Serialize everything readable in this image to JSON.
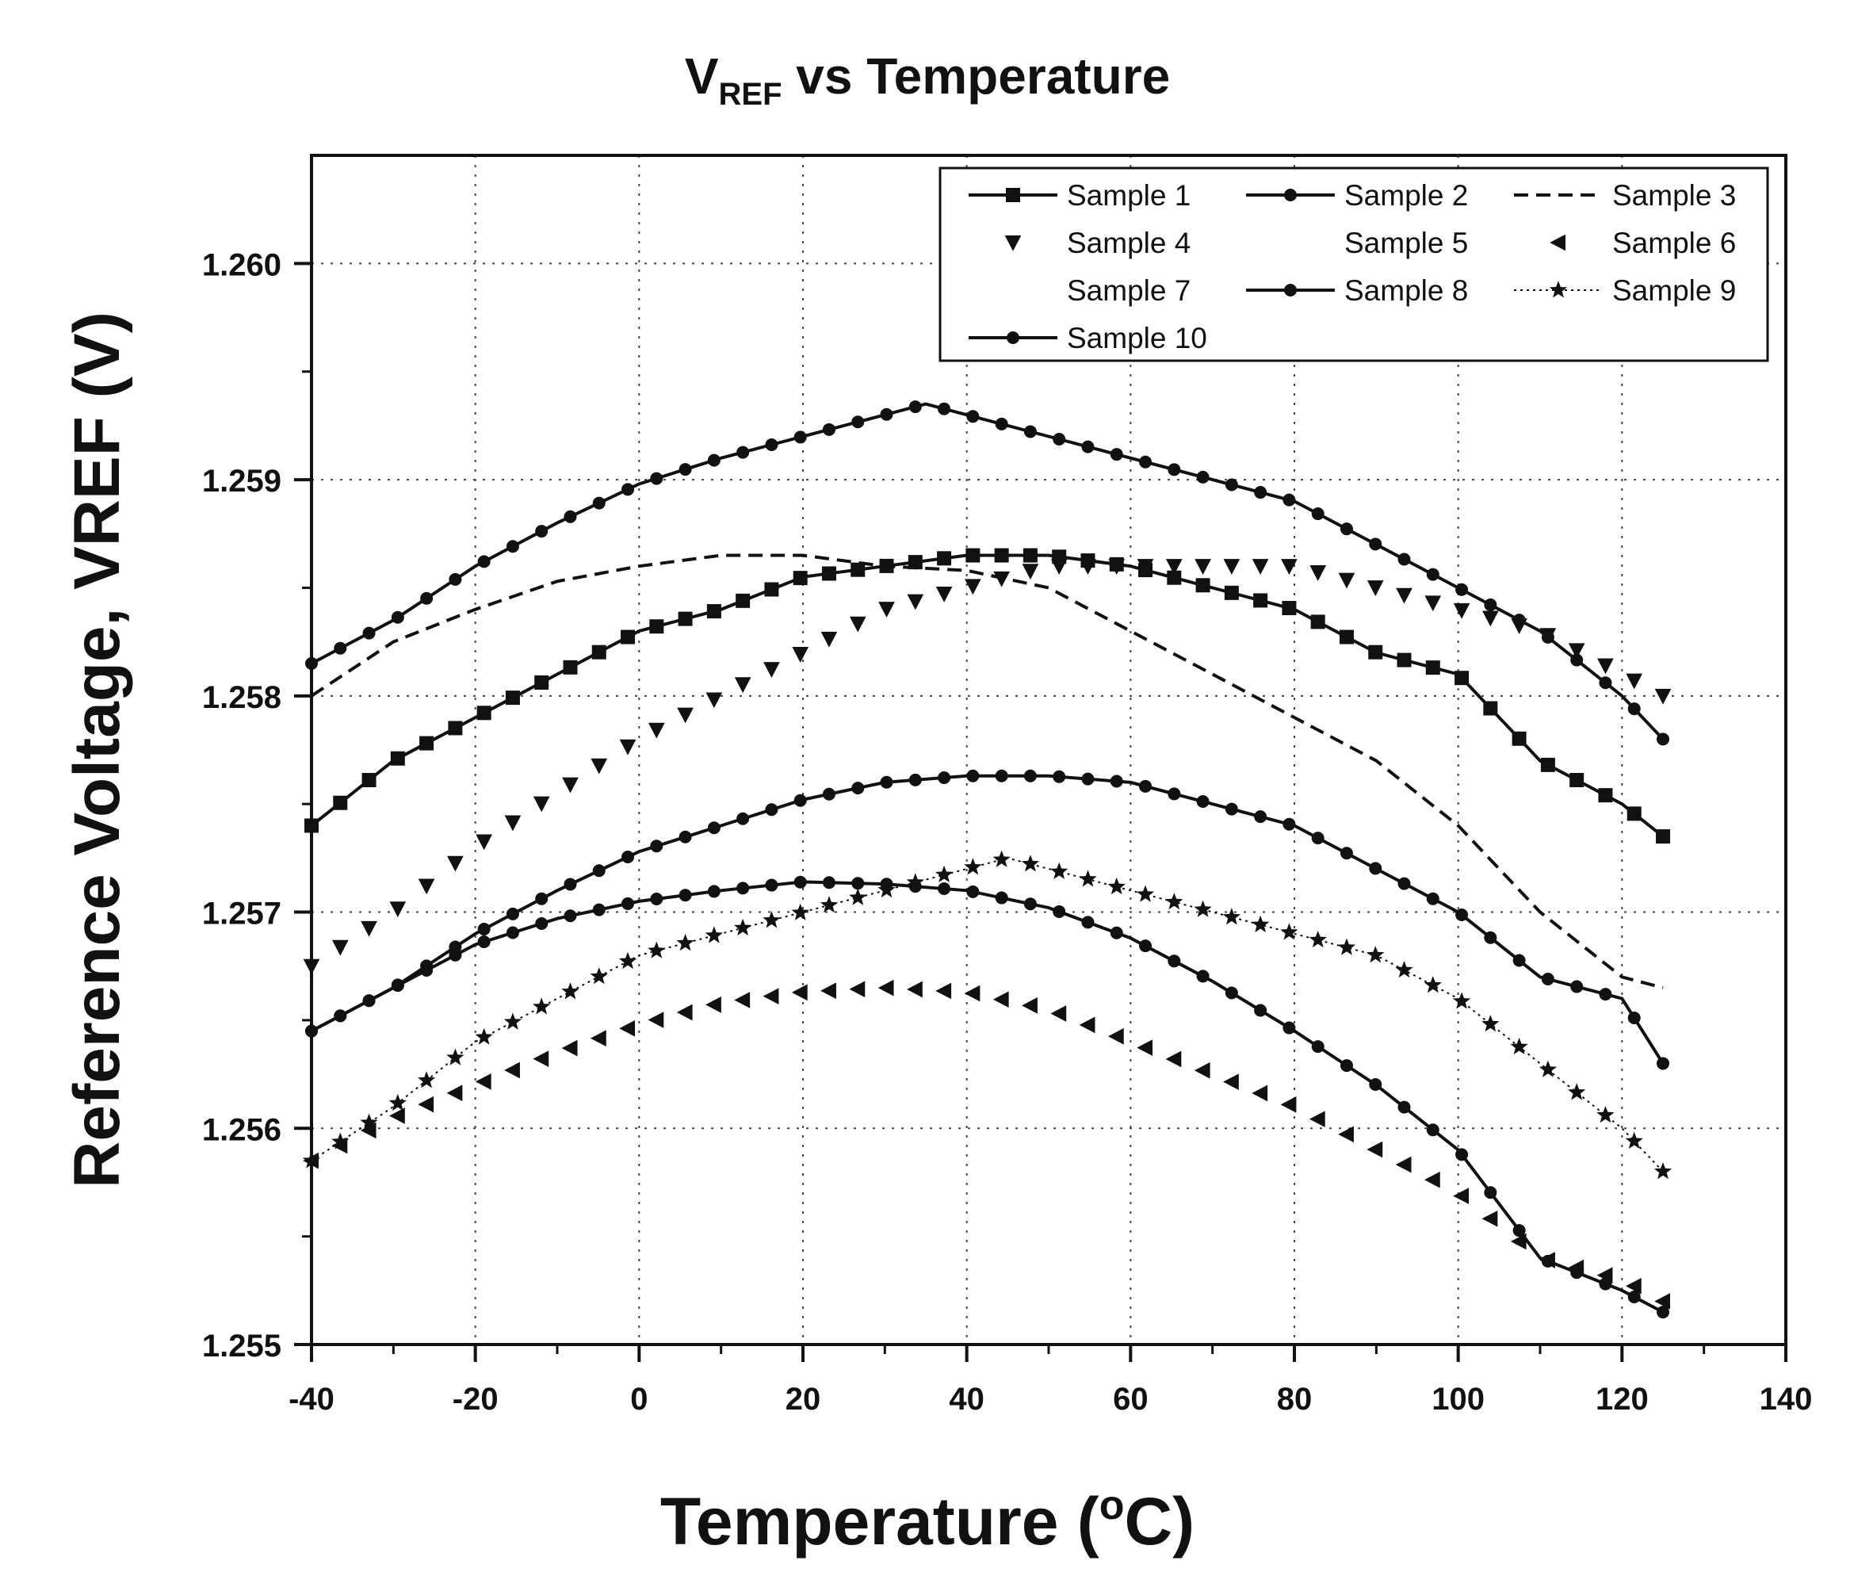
{
  "chart_data": {
    "type": "line",
    "title_main": "V",
    "title_sub": "REF",
    "title_rest": " vs Temperature",
    "xlabel_main": "Temperature (",
    "xlabel_sup": "o",
    "xlabel_end": "C)",
    "ylabel": "Reference Voltage, VREF (V)",
    "xlim": [
      -40,
      140
    ],
    "ylim": [
      1.255,
      1.2605
    ],
    "x_ticks": [
      -40,
      -20,
      0,
      20,
      40,
      60,
      80,
      100,
      120,
      140
    ],
    "x_tick_labels": [
      "-40",
      "-20",
      "0",
      "20",
      "40",
      "60",
      "80",
      "100",
      "120",
      "140"
    ],
    "y_ticks": [
      1.255,
      1.256,
      1.257,
      1.258,
      1.259,
      1.26
    ],
    "y_tick_labels": [
      "1.255",
      "1.256",
      "1.257",
      "1.258",
      "1.259",
      "1.260"
    ],
    "grid": true,
    "legend_position": "top-right",
    "series": [
      {
        "name": "Sample 1",
        "line": "solid",
        "marker": "square",
        "x": [
          -40,
          -30,
          -20,
          -10,
          0,
          10,
          20,
          30,
          40,
          50,
          60,
          70,
          80,
          90,
          100,
          110,
          120,
          125
        ],
        "y": [
          1.2574,
          1.2577,
          1.2579,
          1.2581,
          1.2583,
          1.2584,
          1.25855,
          1.2586,
          1.25865,
          1.25865,
          1.2586,
          1.2585,
          1.2584,
          1.2582,
          1.2581,
          1.2577,
          1.2575,
          1.25735
        ]
      },
      {
        "name": "Sample 2",
        "line": "solid",
        "marker": "circle",
        "x": [
          -40,
          -30,
          -20,
          -10,
          0,
          10,
          20,
          30,
          40,
          50,
          60,
          70,
          80,
          90,
          100,
          110,
          120,
          125
        ],
        "y": [
          1.25645,
          1.25665,
          1.25685,
          1.25697,
          1.25705,
          1.2571,
          1.25714,
          1.25713,
          1.2571,
          1.25702,
          1.25688,
          1.25668,
          1.25645,
          1.2562,
          1.2559,
          1.2554,
          1.25525,
          1.25515
        ]
      },
      {
        "name": "Sample 3",
        "line": "dashed",
        "marker": "none",
        "x": [
          -40,
          -30,
          -20,
          -10,
          0,
          10,
          20,
          30,
          40,
          50,
          60,
          70,
          80,
          90,
          100,
          110,
          120,
          125
        ],
        "y": [
          1.258,
          1.25825,
          1.2584,
          1.25853,
          1.2586,
          1.25865,
          1.25865,
          1.2586,
          1.25858,
          1.2585,
          1.2583,
          1.2581,
          1.2579,
          1.2577,
          1.2574,
          1.257,
          1.2567,
          1.25665
        ]
      },
      {
        "name": "Sample 4",
        "line": "none",
        "marker": "triangle-down",
        "x": [
          -40,
          -30,
          -20,
          -10,
          0,
          10,
          20,
          30,
          40,
          50,
          60,
          70,
          80,
          90,
          100,
          110,
          120,
          125
        ],
        "y": [
          1.25675,
          1.257,
          1.2573,
          1.25755,
          1.2578,
          1.258,
          1.2582,
          1.2584,
          1.2585,
          1.2586,
          1.2586,
          1.2586,
          1.2586,
          1.2585,
          1.2584,
          1.2583,
          1.2581,
          1.258
        ]
      },
      {
        "name": "Sample 5",
        "line": "none",
        "marker": "none",
        "x": [],
        "y": []
      },
      {
        "name": "Sample 6",
        "line": "none",
        "marker": "triangle-left",
        "x": [
          -40,
          -30,
          -20,
          -10,
          0,
          10,
          20,
          30,
          40,
          50,
          60,
          70,
          80,
          90,
          100,
          110,
          120,
          125
        ],
        "y": [
          1.25585,
          1.25605,
          1.2562,
          1.25635,
          1.25648,
          1.25658,
          1.25663,
          1.25665,
          1.25663,
          1.25655,
          1.2564,
          1.25625,
          1.2561,
          1.2559,
          1.2557,
          1.2554,
          1.2553,
          1.2552
        ]
      },
      {
        "name": "Sample 7",
        "line": "none",
        "marker": "none",
        "x": [],
        "y": []
      },
      {
        "name": "Sample 8",
        "line": "solid",
        "marker": "circle",
        "x": [
          -40,
          -30,
          -20,
          -10,
          0,
          10,
          20,
          30,
          40,
          50,
          60,
          70,
          80,
          90,
          100,
          110,
          120,
          125
        ],
        "y": [
          1.25645,
          1.25665,
          1.2569,
          1.2571,
          1.25728,
          1.2574,
          1.25752,
          1.2576,
          1.25763,
          1.25763,
          1.2576,
          1.2575,
          1.2574,
          1.2572,
          1.257,
          1.2567,
          1.2566,
          1.2563
        ]
      },
      {
        "name": "Sample 9",
        "line": "dotted",
        "marker": "star",
        "x": [
          -40,
          -30,
          -20,
          -10,
          0,
          10,
          20,
          30,
          40,
          45,
          50,
          60,
          70,
          80,
          90,
          100,
          110,
          120,
          125
        ],
        "y": [
          1.25585,
          1.2561,
          1.2564,
          1.2566,
          1.2568,
          1.2569,
          1.257,
          1.2571,
          1.2572,
          1.25725,
          1.2572,
          1.2571,
          1.257,
          1.2569,
          1.2568,
          1.2566,
          1.2563,
          1.256,
          1.2558
        ]
      },
      {
        "name": "Sample 10",
        "line": "solid",
        "marker": "circle",
        "x": [
          -40,
          -30,
          -20,
          -10,
          0,
          10,
          20,
          30,
          35,
          40,
          50,
          60,
          70,
          80,
          90,
          100,
          110,
          120,
          125
        ],
        "y": [
          1.25815,
          1.25835,
          1.2586,
          1.2588,
          1.25898,
          1.2591,
          1.2592,
          1.2593,
          1.25935,
          1.2593,
          1.2592,
          1.2591,
          1.259,
          1.2589,
          1.2587,
          1.2585,
          1.2583,
          1.258,
          1.2578
        ]
      }
    ]
  }
}
